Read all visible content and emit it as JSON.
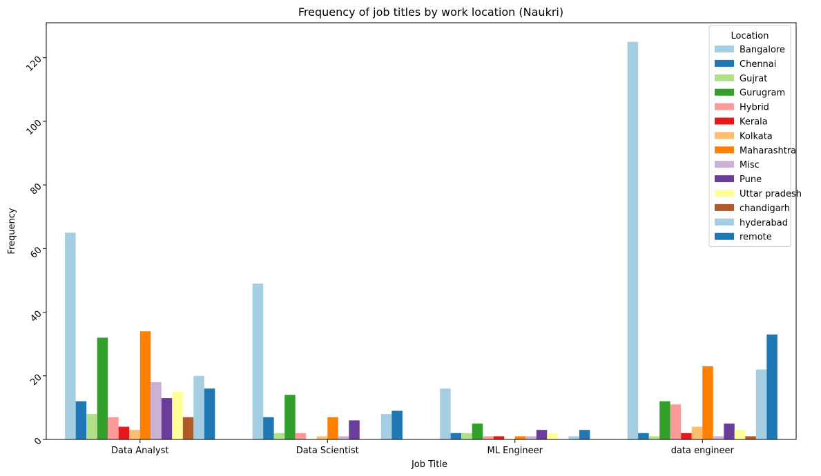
{
  "chart_data": {
    "type": "bar",
    "title": "Frequency of job titles by work location (Naukri)",
    "xlabel": "Job Title",
    "ylabel": "Frequency",
    "ylim": [
      0,
      131
    ],
    "yticks": [
      0,
      20,
      40,
      60,
      80,
      100,
      120
    ],
    "grid": false,
    "legend": {
      "title": "Location",
      "position": "top-right"
    },
    "categories": [
      "Data Analyst",
      "Data Scientist",
      "ML Engineer",
      "data engineer"
    ],
    "series": [
      {
        "name": "Bangalore",
        "color": "#a6cee3",
        "values": [
          65,
          49,
          16,
          125
        ]
      },
      {
        "name": "Chennai",
        "color": "#1f78b4",
        "values": [
          12,
          7,
          2,
          2
        ]
      },
      {
        "name": "Gujrat",
        "color": "#b2df8a",
        "values": [
          8,
          2,
          2,
          1
        ]
      },
      {
        "name": "Gurugram",
        "color": "#33a02c",
        "values": [
          32,
          14,
          5,
          12
        ]
      },
      {
        "name": "Hybrid",
        "color": "#fb9a99",
        "values": [
          7,
          2,
          1,
          11
        ]
      },
      {
        "name": "Kerala",
        "color": "#e31a1c",
        "values": [
          4,
          0,
          1,
          2
        ]
      },
      {
        "name": "Kolkata",
        "color": "#fdbf6f",
        "values": [
          3,
          1,
          0,
          4
        ]
      },
      {
        "name": "Maharashtra",
        "color": "#ff7f00",
        "values": [
          34,
          7,
          1,
          23
        ]
      },
      {
        "name": "Misc",
        "color": "#cab2d6",
        "values": [
          18,
          1,
          1,
          1
        ]
      },
      {
        "name": "Pune",
        "color": "#6a3d9a",
        "values": [
          13,
          6,
          3,
          5
        ]
      },
      {
        "name": "Uttar pradesh",
        "color": "#ffff99",
        "values": [
          15,
          0,
          2,
          3
        ]
      },
      {
        "name": "chandigarh",
        "color": "#b15928",
        "values": [
          7,
          0,
          0,
          1
        ]
      },
      {
        "name": "hyderabad",
        "color": "#a6cee3",
        "values": [
          20,
          8,
          1,
          22
        ]
      },
      {
        "name": "remote",
        "color": "#1f78b4",
        "values": [
          16,
          9,
          3,
          33
        ]
      }
    ]
  }
}
